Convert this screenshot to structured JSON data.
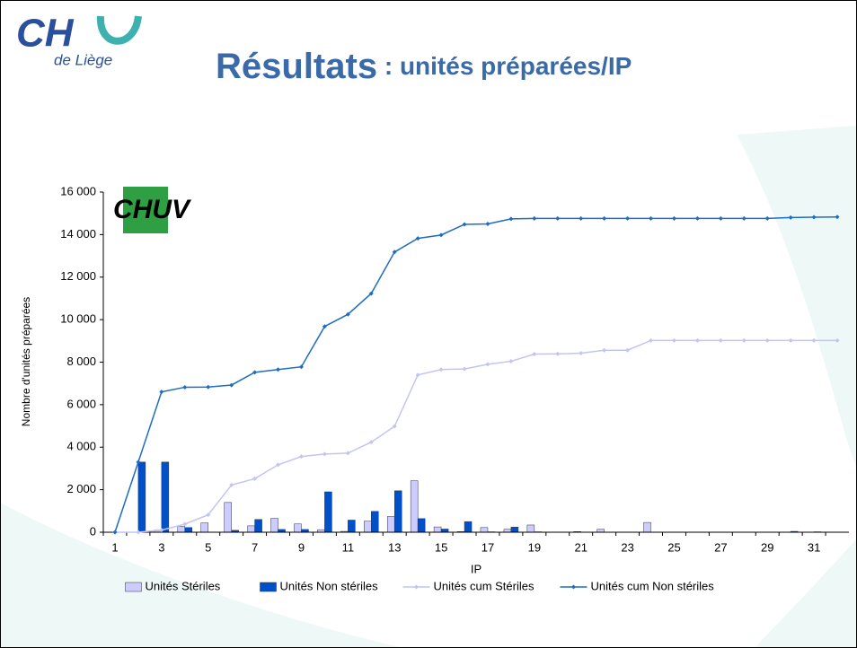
{
  "slide": {
    "title": "Résultats",
    "subtitle": " : unités préparées/IP",
    "logo_main": "CH",
    "logo_sub": "de Liège",
    "logo2": "CHUV"
  },
  "chart_data": {
    "type": "bar",
    "categories": [
      1,
      null,
      3,
      null,
      5,
      null,
      7,
      null,
      9,
      null,
      11,
      null,
      13,
      null,
      15,
      null,
      17,
      null,
      19,
      null,
      21,
      null,
      23,
      null,
      25,
      null,
      27,
      null,
      29,
      null,
      31,
      null
    ],
    "series": [
      {
        "name": "Unités Stériles",
        "type": "bar",
        "color": "#ccccff",
        "values": [
          0,
          0,
          100,
          280,
          440,
          1400,
          300,
          650,
          390,
          120,
          40,
          520,
          740,
          2420,
          250,
          30,
          220,
          140,
          340,
          10,
          30,
          140,
          0,
          460,
          0,
          0,
          0,
          0,
          0,
          0,
          0,
          0
        ]
      },
      {
        "name": "Unités Non stériles",
        "type": "bar",
        "color": "#0050c8",
        "values": [
          0,
          3300,
          3300,
          220,
          10,
          90,
          600,
          130,
          130,
          1900,
          570,
          980,
          1950,
          640,
          150,
          500,
          20,
          240,
          20,
          10,
          0,
          0,
          0,
          0,
          0,
          0,
          0,
          0,
          0,
          40,
          20,
          0
        ]
      },
      {
        "name": "Unités cum Stériles",
        "type": "line",
        "color": "#c4c4f2",
        "values": [
          0,
          0,
          100,
          380,
          820,
          2220,
          2520,
          3170,
          3560,
          3680,
          3720,
          4240,
          4980,
          7400,
          7650,
          7680,
          7900,
          8040,
          8380,
          8390,
          8420,
          8560,
          8560,
          9020,
          9020,
          9020,
          9020,
          9020,
          9020,
          9020,
          9020,
          9020
        ]
      },
      {
        "name": "Unités cum Non stériles",
        "type": "line",
        "color": "#1f6cc0",
        "values": [
          0,
          3300,
          6600,
          6820,
          6830,
          6920,
          7520,
          7650,
          7780,
          9680,
          10250,
          11230,
          13180,
          13820,
          13980,
          14480,
          14500,
          14740,
          14760,
          14760,
          14760,
          14760,
          14760,
          14760,
          14760,
          14760,
          14760,
          14760,
          14760,
          14800,
          14820,
          14830
        ]
      }
    ],
    "x_label": "IP",
    "y_label": "Nombre d'unités préparées",
    "ylim": [
      0,
      16000
    ],
    "yticks": [
      0,
      {
        "value": 2000,
        "label": "2 000"
      },
      {
        "value": 4000,
        "label": "4 000"
      },
      {
        "value": 6000,
        "label": "6 000"
      },
      {
        "value": 8000,
        "label": "8 000"
      },
      {
        "value": 10000,
        "label": "10 000"
      },
      {
        "value": 12000,
        "label": "12 000"
      },
      {
        "value": 14000,
        "label": "14 000"
      },
      {
        "value": 16000,
        "label": "16 000"
      }
    ],
    "legend": "bottom"
  }
}
